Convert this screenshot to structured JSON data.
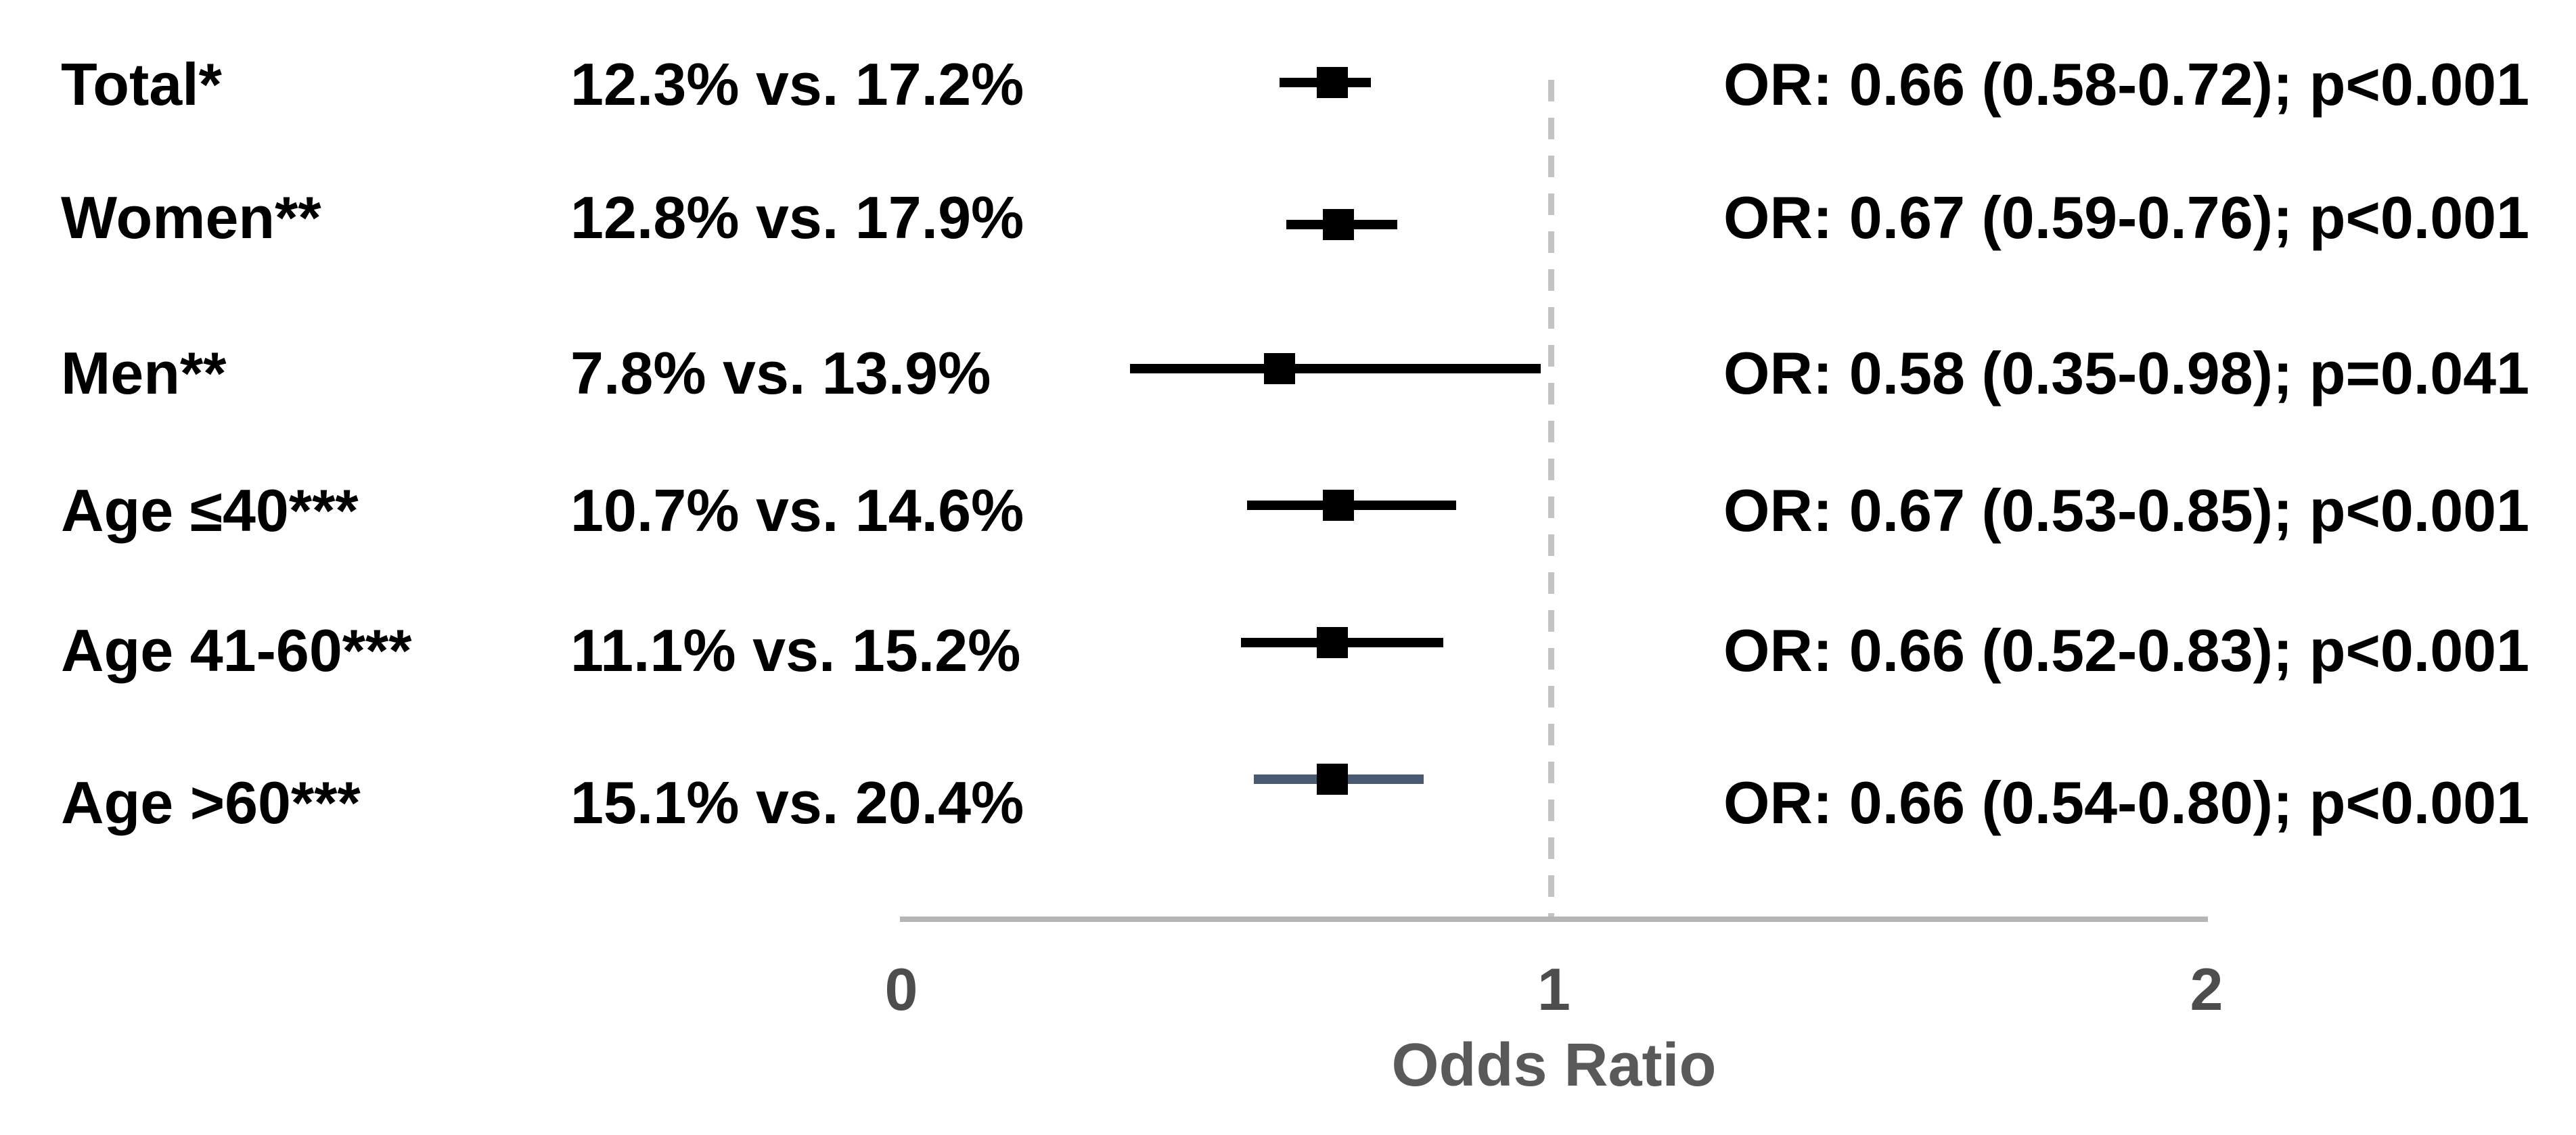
{
  "chart_data": {
    "type": "forest",
    "xlabel": "Odds Ratio",
    "xlim": [
      0,
      2
    ],
    "grid": false,
    "x_ticks": [
      {
        "value": 0,
        "label": "0"
      },
      {
        "value": 1,
        "label": "1"
      },
      {
        "value": 2,
        "label": "2"
      }
    ],
    "reference_line": {
      "value": 1,
      "style": "dashed"
    },
    "rows": [
      {
        "label": "Total*",
        "rates": "12.3% vs. 17.2%",
        "or": 0.66,
        "ci_low": 0.58,
        "ci_high": 0.72,
        "p": "p<0.001",
        "annotation": "OR: 0.66 (0.58-0.72); p<0.001",
        "ci_color": "#000000"
      },
      {
        "label": "Women**",
        "rates": "12.8% vs. 17.9%",
        "or": 0.67,
        "ci_low": 0.59,
        "ci_high": 0.76,
        "p": "p<0.001",
        "annotation": "OR: 0.67 (0.59-0.76); p<0.001",
        "ci_color": "#000000"
      },
      {
        "label": "Men**",
        "rates": "7.8% vs. 13.9%",
        "or": 0.58,
        "ci_low": 0.35,
        "ci_high": 0.98,
        "p": "p=0.041",
        "annotation": "OR: 0.58 (0.35-0.98); p=0.041",
        "ci_color": "#000000"
      },
      {
        "label": "Age ≤40***",
        "rates": "10.7% vs. 14.6%",
        "or": 0.67,
        "ci_low": 0.53,
        "ci_high": 0.85,
        "p": "p<0.001",
        "annotation": "OR: 0.67 (0.53-0.85); p<0.001",
        "ci_color": "#000000"
      },
      {
        "label": "Age 41-60***",
        "rates": "11.1% vs. 15.2%",
        "or": 0.66,
        "ci_low": 0.52,
        "ci_high": 0.83,
        "p": "p<0.001",
        "annotation": "OR: 0.66 (0.52-0.83); p<0.001",
        "ci_color": "#000000"
      },
      {
        "label": "Age >60***",
        "rates": "15.1% vs. 20.4%",
        "or": 0.66,
        "ci_low": 0.54,
        "ci_high": 0.8,
        "p": "p<0.001",
        "annotation": "OR: 0.66 (0.54-0.80); p<0.001",
        "ci_color": "#4a5a70"
      }
    ],
    "colors": {
      "marker": "#000000",
      "reference_line": "#c3c3c3",
      "axis_line": "#b5b5b5",
      "tick_label": "#4d4d4d",
      "axis_label": "#595959",
      "text": "#000000",
      "background": "#ffffff"
    }
  }
}
